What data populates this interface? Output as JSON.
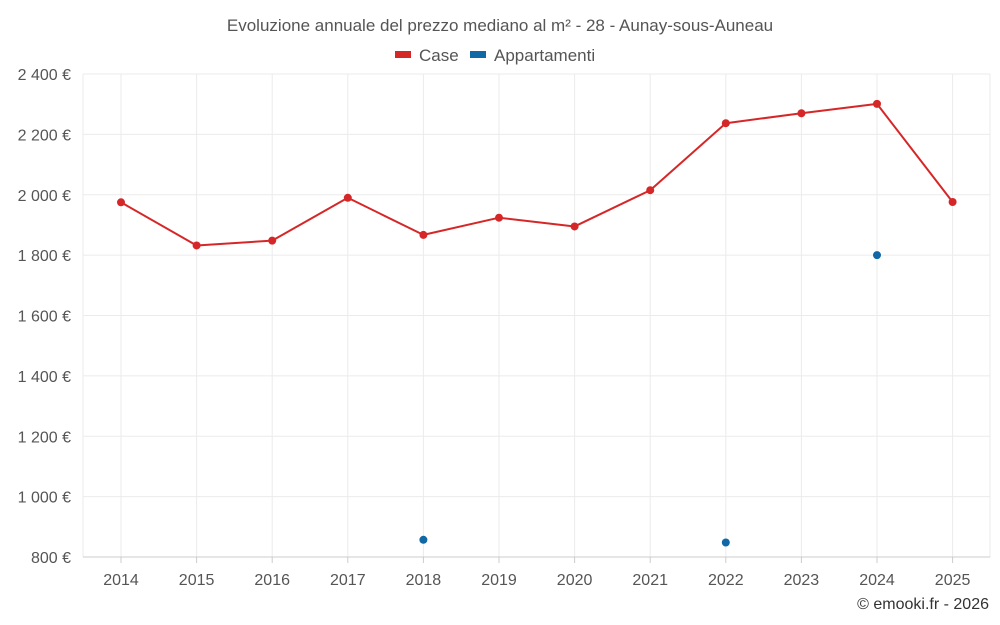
{
  "chart_data": {
    "type": "line",
    "title": "Evoluzione annuale del prezzo mediano al m² - 28 - Aunay-sous-Auneau",
    "categories": [
      "2014",
      "2015",
      "2016",
      "2017",
      "2018",
      "2019",
      "2020",
      "2021",
      "2022",
      "2023",
      "2024",
      "2025"
    ],
    "series": [
      {
        "name": "Case",
        "color": "#d62728",
        "values": [
          1975,
          1832,
          1848,
          1990,
          1867,
          1924,
          1895,
          2015,
          2237,
          2270,
          2301,
          1976
        ]
      },
      {
        "name": "Appartamenti",
        "color": "#1168a7",
        "values": [
          null,
          null,
          null,
          null,
          857,
          null,
          null,
          null,
          848,
          null,
          1800,
          null
        ]
      }
    ],
    "ylim": [
      800,
      2400
    ],
    "yticks": [
      800,
      1000,
      1200,
      1400,
      1600,
      1800,
      2000,
      2200,
      2400
    ],
    "ytick_labels": [
      "800 €",
      "1 000 €",
      "1 200 €",
      "1 400 €",
      "1 600 €",
      "1 800 €",
      "2 000 €",
      "2 200 €",
      "2 400 €"
    ],
    "xlabel": "",
    "ylabel": "",
    "grid": true,
    "legend_position": "top-center"
  },
  "credit": "© emooki.fr - 2026"
}
